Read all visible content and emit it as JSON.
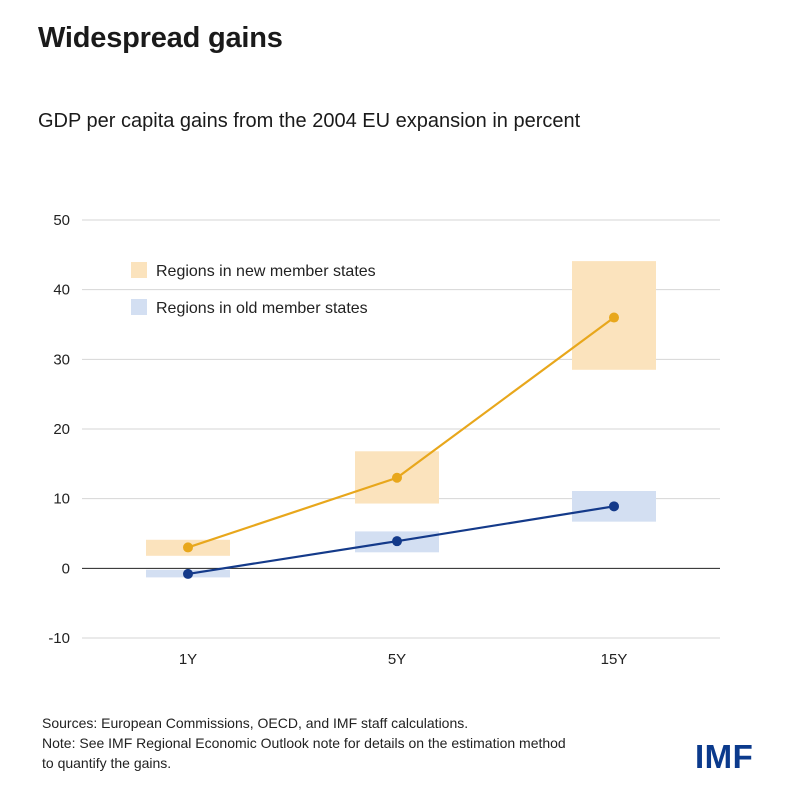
{
  "headline": "Widespread gains",
  "footer": {
    "sources": "Sources: European Commissions, OECD, and IMF staff calculations.",
    "note_line1": "Note: See IMF Regional Economic Outlook note for details on the estimation method",
    "note_line2": "to quantify the gains."
  },
  "logo": "IMF",
  "chart_data": {
    "type": "line",
    "title": "GDP per capita gains from the 2004 EU expansion in percent",
    "categories": [
      "1Y",
      "5Y",
      "15Y"
    ],
    "ylim": [
      -10,
      50
    ],
    "yticks": [
      -10,
      0,
      10,
      20,
      30,
      40,
      50
    ],
    "grid": true,
    "legend_position": "top-left",
    "series": [
      {
        "name": "Regions in new member states",
        "values": [
          3,
          13,
          36
        ],
        "range_low": [
          1.8,
          9.3,
          28.5
        ],
        "range_high": [
          4.1,
          16.8,
          44.1
        ],
        "color": "#e8a71c",
        "range_color": "#fbe3bd"
      },
      {
        "name": "Regions in old member states",
        "values": [
          -0.8,
          3.9,
          8.9
        ],
        "range_low": [
          -1.3,
          2.3,
          6.7
        ],
        "range_high": [
          -0.2,
          5.3,
          11.1
        ],
        "color": "#143a8a",
        "range_color": "#d3dff2"
      }
    ]
  }
}
